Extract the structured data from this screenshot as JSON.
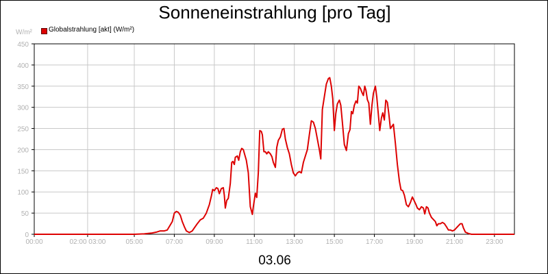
{
  "chart_data": {
    "type": "line",
    "title": "Sonneneinstrahlung [pro Tag]",
    "ylabel": "W/m²",
    "xlabel": "03.06",
    "ylim": [
      0,
      450
    ],
    "xlim": [
      0,
      24
    ],
    "grid": true,
    "legend_placement": "top-left",
    "y_ticks": [
      "0",
      "50",
      "100",
      "150",
      "200",
      "250",
      "300",
      "350",
      "400",
      "450"
    ],
    "x_ticks": [
      {
        "x": 0,
        "label": "00:00"
      },
      {
        "x": 2.667,
        "label": "02:00 03:00"
      },
      {
        "x": 5,
        "label": "05:00"
      },
      {
        "x": 7,
        "label": "07:00"
      },
      {
        "x": 9,
        "label": "09:00"
      },
      {
        "x": 11,
        "label": "11:00"
      },
      {
        "x": 13,
        "label": "13:00"
      },
      {
        "x": 15,
        "label": "15:00"
      },
      {
        "x": 17,
        "label": "17:00"
      },
      {
        "x": 19,
        "label": "19:00"
      },
      {
        "x": 21,
        "label": "21:00"
      },
      {
        "x": 23,
        "label": "23:00"
      }
    ],
    "series": [
      {
        "name": "Globalstrahlung [akt] (W/m²)",
        "color": "#dd0000",
        "points": [
          [
            0,
            0
          ],
          [
            5.0,
            0
          ],
          [
            5.5,
            1
          ],
          [
            5.9,
            3
          ],
          [
            6.1,
            5
          ],
          [
            6.3,
            8
          ],
          [
            6.5,
            8
          ],
          [
            6.65,
            10
          ],
          [
            6.8,
            22
          ],
          [
            6.9,
            30
          ],
          [
            7.0,
            50
          ],
          [
            7.1,
            54
          ],
          [
            7.2,
            52
          ],
          [
            7.3,
            45
          ],
          [
            7.4,
            30
          ],
          [
            7.5,
            18
          ],
          [
            7.6,
            8
          ],
          [
            7.75,
            4
          ],
          [
            7.9,
            8
          ],
          [
            8.0,
            15
          ],
          [
            8.15,
            25
          ],
          [
            8.3,
            34
          ],
          [
            8.45,
            38
          ],
          [
            8.6,
            50
          ],
          [
            8.75,
            70
          ],
          [
            8.85,
            90
          ],
          [
            8.92,
            106
          ],
          [
            9.0,
            103
          ],
          [
            9.1,
            110
          ],
          [
            9.18,
            108
          ],
          [
            9.25,
            96
          ],
          [
            9.35,
            108
          ],
          [
            9.45,
            110
          ],
          [
            9.5,
            92
          ],
          [
            9.55,
            62
          ],
          [
            9.62,
            80
          ],
          [
            9.7,
            85
          ],
          [
            9.8,
            120
          ],
          [
            9.87,
            170
          ],
          [
            9.93,
            172
          ],
          [
            10.0,
            165
          ],
          [
            10.05,
            182
          ],
          [
            10.15,
            185
          ],
          [
            10.22,
            175
          ],
          [
            10.3,
            195
          ],
          [
            10.37,
            203
          ],
          [
            10.45,
            200
          ],
          [
            10.52,
            188
          ],
          [
            10.6,
            175
          ],
          [
            10.7,
            145
          ],
          [
            10.8,
            65
          ],
          [
            10.9,
            47
          ],
          [
            10.95,
            65
          ],
          [
            11.05,
            97
          ],
          [
            11.12,
            87
          ],
          [
            11.2,
            145
          ],
          [
            11.27,
            245
          ],
          [
            11.35,
            243
          ],
          [
            11.4,
            235
          ],
          [
            11.48,
            195
          ],
          [
            11.55,
            195
          ],
          [
            11.62,
            190
          ],
          [
            11.7,
            195
          ],
          [
            11.8,
            190
          ],
          [
            11.88,
            183
          ],
          [
            11.95,
            170
          ],
          [
            12.05,
            158
          ],
          [
            12.12,
            205
          ],
          [
            12.2,
            222
          ],
          [
            12.3,
            230
          ],
          [
            12.4,
            248
          ],
          [
            12.48,
            250
          ],
          [
            12.55,
            225
          ],
          [
            12.65,
            205
          ],
          [
            12.75,
            190
          ],
          [
            12.85,
            165
          ],
          [
            12.95,
            145
          ],
          [
            13.05,
            138
          ],
          [
            13.15,
            145
          ],
          [
            13.25,
            148
          ],
          [
            13.35,
            145
          ],
          [
            13.45,
            170
          ],
          [
            13.55,
            185
          ],
          [
            13.65,
            200
          ],
          [
            13.75,
            235
          ],
          [
            13.85,
            268
          ],
          [
            13.95,
            265
          ],
          [
            14.05,
            250
          ],
          [
            14.15,
            225
          ],
          [
            14.25,
            200
          ],
          [
            14.32,
            178
          ],
          [
            14.4,
            295
          ],
          [
            14.5,
            325
          ],
          [
            14.6,
            355
          ],
          [
            14.7,
            368
          ],
          [
            14.77,
            370
          ],
          [
            14.85,
            350
          ],
          [
            14.92,
            320
          ],
          [
            15.0,
            245
          ],
          [
            15.07,
            285
          ],
          [
            15.15,
            308
          ],
          [
            15.25,
            317
          ],
          [
            15.32,
            305
          ],
          [
            15.4,
            265
          ],
          [
            15.5,
            212
          ],
          [
            15.6,
            198
          ],
          [
            15.7,
            238
          ],
          [
            15.78,
            247
          ],
          [
            15.85,
            290
          ],
          [
            15.92,
            285
          ],
          [
            16.0,
            305
          ],
          [
            16.08,
            315
          ],
          [
            16.15,
            310
          ],
          [
            16.22,
            350
          ],
          [
            16.3,
            345
          ],
          [
            16.38,
            335
          ],
          [
            16.45,
            328
          ],
          [
            16.52,
            350
          ],
          [
            16.58,
            340
          ],
          [
            16.65,
            318
          ],
          [
            16.72,
            310
          ],
          [
            16.8,
            260
          ],
          [
            16.88,
            305
          ],
          [
            16.95,
            333
          ],
          [
            17.05,
            350
          ],
          [
            17.12,
            325
          ],
          [
            17.2,
            282
          ],
          [
            17.27,
            245
          ],
          [
            17.35,
            275
          ],
          [
            17.42,
            287
          ],
          [
            17.5,
            270
          ],
          [
            17.57,
            317
          ],
          [
            17.65,
            312
          ],
          [
            17.72,
            285
          ],
          [
            17.8,
            250
          ],
          [
            17.88,
            255
          ],
          [
            17.95,
            260
          ],
          [
            18.05,
            215
          ],
          [
            18.15,
            165
          ],
          [
            18.25,
            125
          ],
          [
            18.33,
            105
          ],
          [
            18.42,
            103
          ],
          [
            18.5,
            92
          ],
          [
            18.6,
            70
          ],
          [
            18.7,
            65
          ],
          [
            18.8,
            75
          ],
          [
            18.9,
            88
          ],
          [
            19.0,
            78
          ],
          [
            19.08,
            70
          ],
          [
            19.15,
            62
          ],
          [
            19.25,
            58
          ],
          [
            19.35,
            65
          ],
          [
            19.45,
            62
          ],
          [
            19.52,
            48
          ],
          [
            19.6,
            65
          ],
          [
            19.68,
            62
          ],
          [
            19.75,
            50
          ],
          [
            19.85,
            40
          ],
          [
            19.95,
            35
          ],
          [
            20.05,
            30
          ],
          [
            20.12,
            20
          ],
          [
            20.2,
            25
          ],
          [
            20.3,
            25
          ],
          [
            20.4,
            28
          ],
          [
            20.5,
            25
          ],
          [
            20.6,
            18
          ],
          [
            20.7,
            10
          ],
          [
            20.8,
            10
          ],
          [
            20.9,
            8
          ],
          [
            21.0,
            10
          ],
          [
            21.1,
            15
          ],
          [
            21.2,
            20
          ],
          [
            21.3,
            25
          ],
          [
            21.38,
            25
          ],
          [
            21.45,
            15
          ],
          [
            21.55,
            5
          ],
          [
            21.7,
            2
          ],
          [
            21.85,
            0
          ],
          [
            24.0,
            0
          ]
        ]
      }
    ]
  },
  "legend_color": "#dd0000"
}
